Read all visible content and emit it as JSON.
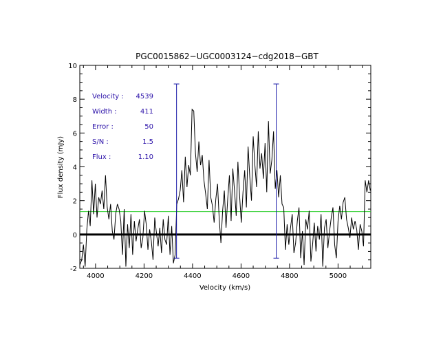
{
  "chart_data": {
    "type": "line",
    "title": "PGC0015862−UGC0003124−cdg2018−GBT",
    "xlabel": "Velocity (km/s)",
    "ylabel": "Flux density (mJy)",
    "xlim": [
      3935,
      5135
    ],
    "ylim": [
      -2,
      10
    ],
    "x_ticks": [
      4000,
      4200,
      4400,
      4600,
      4800,
      5000
    ],
    "y_ticks": [
      -2,
      0,
      2,
      4,
      6,
      8,
      10
    ],
    "annotations": [
      {
        "label": "Velocity :",
        "value": "4539"
      },
      {
        "label": "Width :",
        "value": "411"
      },
      {
        "label": "Error :",
        "value": "50"
      },
      {
        "label": "S/N :",
        "value": "1.5"
      },
      {
        "label": "Flux :",
        "value": "1.10"
      }
    ],
    "annotation_color": "#2a10a8",
    "spectrum_color": "#000000",
    "zero_line": {
      "y": 0,
      "color": "#000000"
    },
    "rms_line": {
      "y": 1.35,
      "color": "#22cc22"
    },
    "width_markers": {
      "x": [
        4334,
        4745
      ],
      "y_top": 8.9,
      "y_bottom": -1.4,
      "color": "#1a1aa8"
    },
    "spectrum": {
      "x": [
        3935,
        3943,
        3950,
        3957,
        3964,
        3971,
        3978,
        3985,
        3992,
        3999,
        4006,
        4013,
        4020,
        4027,
        4034,
        4041,
        4048,
        4055,
        4062,
        4069,
        4076,
        4083,
        4090,
        4097,
        4104,
        4111,
        4118,
        4125,
        4132,
        4139,
        4146,
        4153,
        4160,
        4167,
        4174,
        4181,
        4188,
        4195,
        4202,
        4209,
        4216,
        4223,
        4230,
        4237,
        4244,
        4251,
        4258,
        4265,
        4272,
        4279,
        4286,
        4293,
        4300,
        4307,
        4314,
        4321,
        4328,
        4335,
        4342,
        4349,
        4356,
        4363,
        4370,
        4377,
        4384,
        4391,
        4398,
        4405,
        4412,
        4419,
        4426,
        4433,
        4440,
        4447,
        4454,
        4461,
        4468,
        4475,
        4482,
        4489,
        4496,
        4503,
        4510,
        4517,
        4524,
        4531,
        4538,
        4545,
        4552,
        4559,
        4566,
        4573,
        4580,
        4587,
        4594,
        4601,
        4608,
        4615,
        4622,
        4629,
        4636,
        4643,
        4650,
        4657,
        4664,
        4671,
        4678,
        4685,
        4692,
        4699,
        4706,
        4713,
        4720,
        4727,
        4734,
        4741,
        4748,
        4755,
        4762,
        4769,
        4776,
        4783,
        4790,
        4797,
        4804,
        4811,
        4818,
        4825,
        4832,
        4839,
        4846,
        4853,
        4860,
        4867,
        4874,
        4881,
        4888,
        4895,
        4902,
        4909,
        4916,
        4923,
        4930,
        4937,
        4944,
        4951,
        4958,
        4965,
        4972,
        4979,
        4986,
        4993,
        5000,
        5007,
        5014,
        5021,
        5028,
        5035,
        5042,
        5049,
        5056,
        5063,
        5070,
        5077,
        5084,
        5091,
        5098,
        5105,
        5112,
        5119,
        5126,
        5133
      ],
      "y": [
        -1.8,
        -1.5,
        -0.6,
        -1.9,
        0.3,
        1.4,
        0.5,
        3.2,
        1.2,
        3.0,
        1.0,
        2.2,
        1.8,
        2.6,
        1.5,
        3.5,
        1.6,
        0.9,
        1.8,
        0.2,
        -0.3,
        1.2,
        1.8,
        1.5,
        0.8,
        -1.2,
        1.5,
        -1.9,
        0.6,
        -0.8,
        1.2,
        -1.2,
        0.8,
        -0.4,
        0.3,
        0.9,
        -0.8,
        -0.2,
        1.4,
        0.6,
        -0.9,
        0.3,
        -0.4,
        -1.5,
        1.0,
        0.1,
        -0.7,
        0.4,
        -1.1,
        0.9,
        -0.3,
        -0.6,
        1.1,
        -1.2,
        0.5,
        -1.7,
        -1.2,
        1.8,
        2.1,
        2.6,
        3.8,
        1.9,
        4.6,
        2.8,
        4.1,
        3.5,
        7.4,
        7.3,
        4.8,
        3.7,
        5.5,
        4.1,
        4.7,
        3.2,
        2.4,
        1.5,
        4.4,
        2.2,
        1.7,
        0.7,
        2.1,
        3.0,
        0.9,
        -0.5,
        1.4,
        2.6,
        0.4,
        2.1,
        3.5,
        0.8,
        3.9,
        2.6,
        1.1,
        4.3,
        2.3,
        0.7,
        2.5,
        3.8,
        1.6,
        5.2,
        3.4,
        2.0,
        5.8,
        4.1,
        2.8,
        6.1,
        3.9,
        4.8,
        3.3,
        5.4,
        2.5,
        6.7,
        3.6,
        4.4,
        6.1,
        2.7,
        3.8,
        2.2,
        3.5,
        1.8,
        1.6,
        -0.9,
        0.6,
        -0.6,
        0.4,
        1.2,
        -1.1,
        -0.5,
        0.8,
        1.6,
        -1.4,
        0.2,
        -1.8,
        0.9,
        0.3,
        1.4,
        -1.6,
        -0.6,
        0.7,
        -1.0,
        0.5,
        -0.3,
        1.2,
        -1.9,
        0.4,
        0.9,
        -0.8,
        0.2,
        1.0,
        1.6,
        -0.6,
        -1.4,
        0.8,
        1.7,
        0.9,
        1.9,
        2.2,
        0.9,
        0.4,
        -0.2,
        1.0,
        0.3,
        0.8,
        0.3,
        -0.9,
        0.6,
        0.2,
        -0.7,
        3.2,
        2.5,
        3.2,
        2.6
      ]
    }
  }
}
